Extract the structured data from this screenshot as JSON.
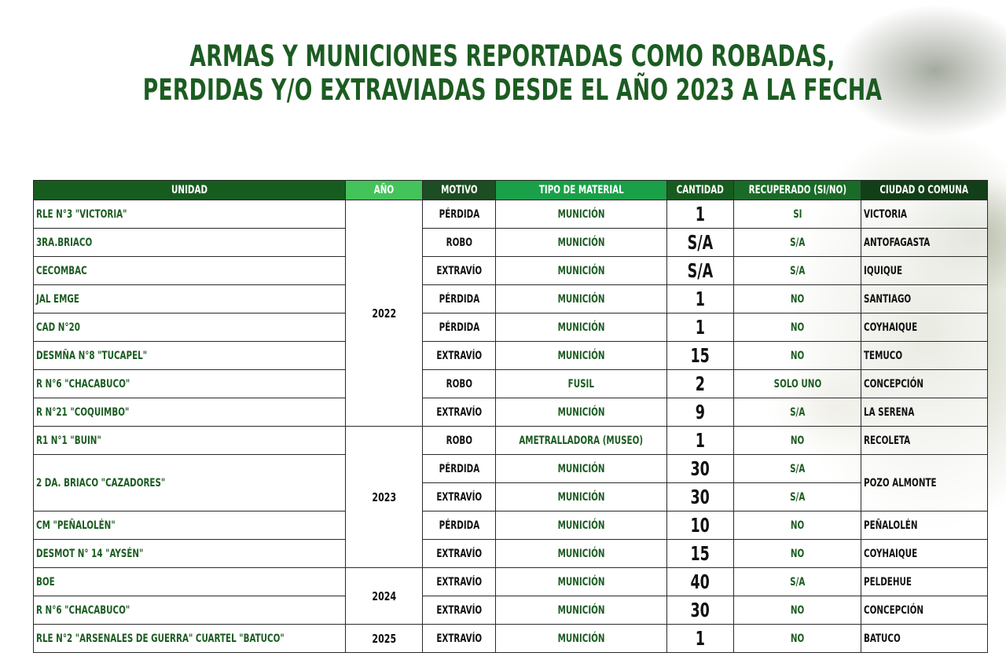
{
  "title": {
    "line1": "ARMAS Y MUNICIONES REPORTADAS COMO ROBADAS,",
    "line2": "PERDIDAS Y/O EXTRAVIADAS DESDE EL AÑO 2023 A LA FECHA"
  },
  "headers": {
    "unidad": "UNIDAD",
    "anio": "AÑO",
    "motivo": "MOTIVO",
    "tipo": "TIPO DE MATERIAL",
    "cantidad": "CANTIDAD",
    "recuperado": "RECUPERADO (SI/NO)",
    "ciudad": "CIUDAD O COMUNA"
  },
  "years": {
    "y2022": "2022",
    "y2023": "2023",
    "y2024": "2024",
    "y2025": "2025"
  },
  "rows": [
    {
      "unidad": "RLE N°3 \"VICTORIA\"",
      "motivo": "PÉRDIDA",
      "tipo": "MUNICIÓN",
      "cantidad": "1",
      "recuperado": "SI",
      "ciudad": "VICTORIA"
    },
    {
      "unidad": "3RA.BRIACO",
      "motivo": "ROBO",
      "tipo": "MUNICIÓN",
      "cantidad": "S/A",
      "recuperado": "S/A",
      "ciudad": "ANTOFAGASTA"
    },
    {
      "unidad": "CECOMBAC",
      "motivo": "EXTRAVÍO",
      "tipo": "MUNICIÓN",
      "cantidad": "S/A",
      "recuperado": "S/A",
      "ciudad": "IQUIQUE"
    },
    {
      "unidad": "JAL EMGE",
      "motivo": "PÉRDIDA",
      "tipo": "MUNICIÓN",
      "cantidad": "1",
      "recuperado": "NO",
      "ciudad": "SANTIAGO"
    },
    {
      "unidad": "CAD N°20",
      "motivo": "PÉRDIDA",
      "tipo": "MUNICIÓN",
      "cantidad": "1",
      "recuperado": "NO",
      "ciudad": "COYHAIQUE"
    },
    {
      "unidad": "DESMÑA N°8 \"TUCAPEL\"",
      "motivo": "EXTRAVÍO",
      "tipo": "MUNICIÓN",
      "cantidad": "15",
      "recuperado": "NO",
      "ciudad": "TEMUCO"
    },
    {
      "unidad": "R N°6 \"CHACABUCO\"",
      "motivo": "ROBO",
      "tipo": "FUSIL",
      "cantidad": "2",
      "recuperado": "SOLO UNO",
      "ciudad": "CONCEPCIÓN"
    },
    {
      "unidad": "R N°21 \"COQUIMBO\"",
      "motivo": "EXTRAVÍO",
      "tipo": "MUNICIÓN",
      "cantidad": "9",
      "recuperado": "S/A",
      "ciudad": "LA SERENA"
    },
    {
      "unidad": "R1 N°1 \"BUIN\"",
      "motivo": "ROBO",
      "tipo": "AMETRALLADORA (MUSEO)",
      "cantidad": "1",
      "recuperado": "NO",
      "ciudad": "RECOLETA"
    },
    {
      "unidad": "2 DA. BRIACO \"CAZADORES\"",
      "motivo": "PÉRDIDA",
      "tipo": "MUNICIÓN",
      "cantidad": "30",
      "recuperado": "S/A",
      "ciudad": "POZO ALMONTE"
    },
    {
      "motivo": "EXTRAVÍO",
      "tipo": "MUNICIÓN",
      "cantidad": "30",
      "recuperado": "S/A"
    },
    {
      "unidad": "CM \"PEÑALOLÉN\"",
      "motivo": "PÉRDIDA",
      "tipo": "MUNICIÓN",
      "cantidad": "10",
      "recuperado": "NO",
      "ciudad": "PEÑALOLÉN"
    },
    {
      "unidad": "DESMOT N° 14 \"AYSÉN\"",
      "motivo": "EXTRAVÍO",
      "tipo": "MUNICIÓN",
      "cantidad": "15",
      "recuperado": "NO",
      "ciudad": "COYHAIQUE"
    },
    {
      "unidad": "BOE",
      "motivo": "EXTRAVÍO",
      "tipo": "MUNICIÓN",
      "cantidad": "40",
      "recuperado": "S/A",
      "ciudad": "PELDEHUE"
    },
    {
      "unidad": "R N°6 \"CHACABUCO\"",
      "motivo": "EXTRAVÍO",
      "tipo": "MUNICIÓN",
      "cantidad": "30",
      "recuperado": "NO",
      "ciudad": "CONCEPCIÓN"
    },
    {
      "unidad": "RLE N°2 \"ARSENALES DE GUERRA\" CUARTEL \"BATUCO\"",
      "motivo": "EXTRAVÍO",
      "tipo": "MUNICIÓN",
      "cantidad": "1",
      "recuperado": "NO",
      "ciudad": "BATUCO"
    }
  ]
}
